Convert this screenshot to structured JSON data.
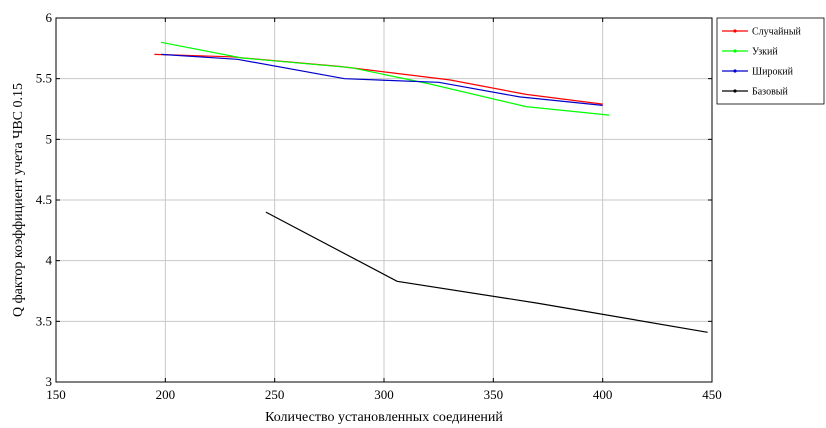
{
  "chart_data": {
    "type": "line",
    "xlabel": "Количество установленных соединений",
    "ylabel": "Q фактор коэффициент учета ЧВС 0.15",
    "xlim": [
      150,
      450
    ],
    "ylim": [
      3,
      6
    ],
    "xticks": [
      150,
      200,
      250,
      300,
      350,
      400,
      450
    ],
    "yticks": [
      3,
      3.5,
      4,
      4.5,
      5,
      5.5,
      6
    ],
    "xtick_labels": [
      "150",
      "200",
      "250",
      "300",
      "350",
      "400",
      "450"
    ],
    "ytick_labels": [
      "3",
      "3.5",
      "4",
      "4.5",
      "5",
      "5.5",
      "6"
    ],
    "grid": true,
    "legend_position": "right",
    "series": [
      {
        "name": "Случайный",
        "color": "#ff0000",
        "x": [
          195,
          230,
          280,
          330,
          365,
          400
        ],
        "y": [
          5.7,
          5.68,
          5.6,
          5.49,
          5.37,
          5.29
        ]
      },
      {
        "name": "Узкий",
        "color": "#00ff00",
        "x": [
          198,
          235,
          285,
          320,
          365,
          403
        ],
        "y": [
          5.8,
          5.67,
          5.59,
          5.46,
          5.27,
          5.2
        ]
      },
      {
        "name": "Широкий",
        "color": "#0000cc",
        "x": [
          198,
          233,
          282,
          325,
          362,
          400
        ],
        "y": [
          5.7,
          5.66,
          5.5,
          5.47,
          5.35,
          5.28
        ]
      },
      {
        "name": "Базовый",
        "color": "#000000",
        "x": [
          246,
          306,
          370,
          448
        ],
        "y": [
          4.4,
          3.83,
          3.65,
          3.41
        ]
      }
    ]
  }
}
